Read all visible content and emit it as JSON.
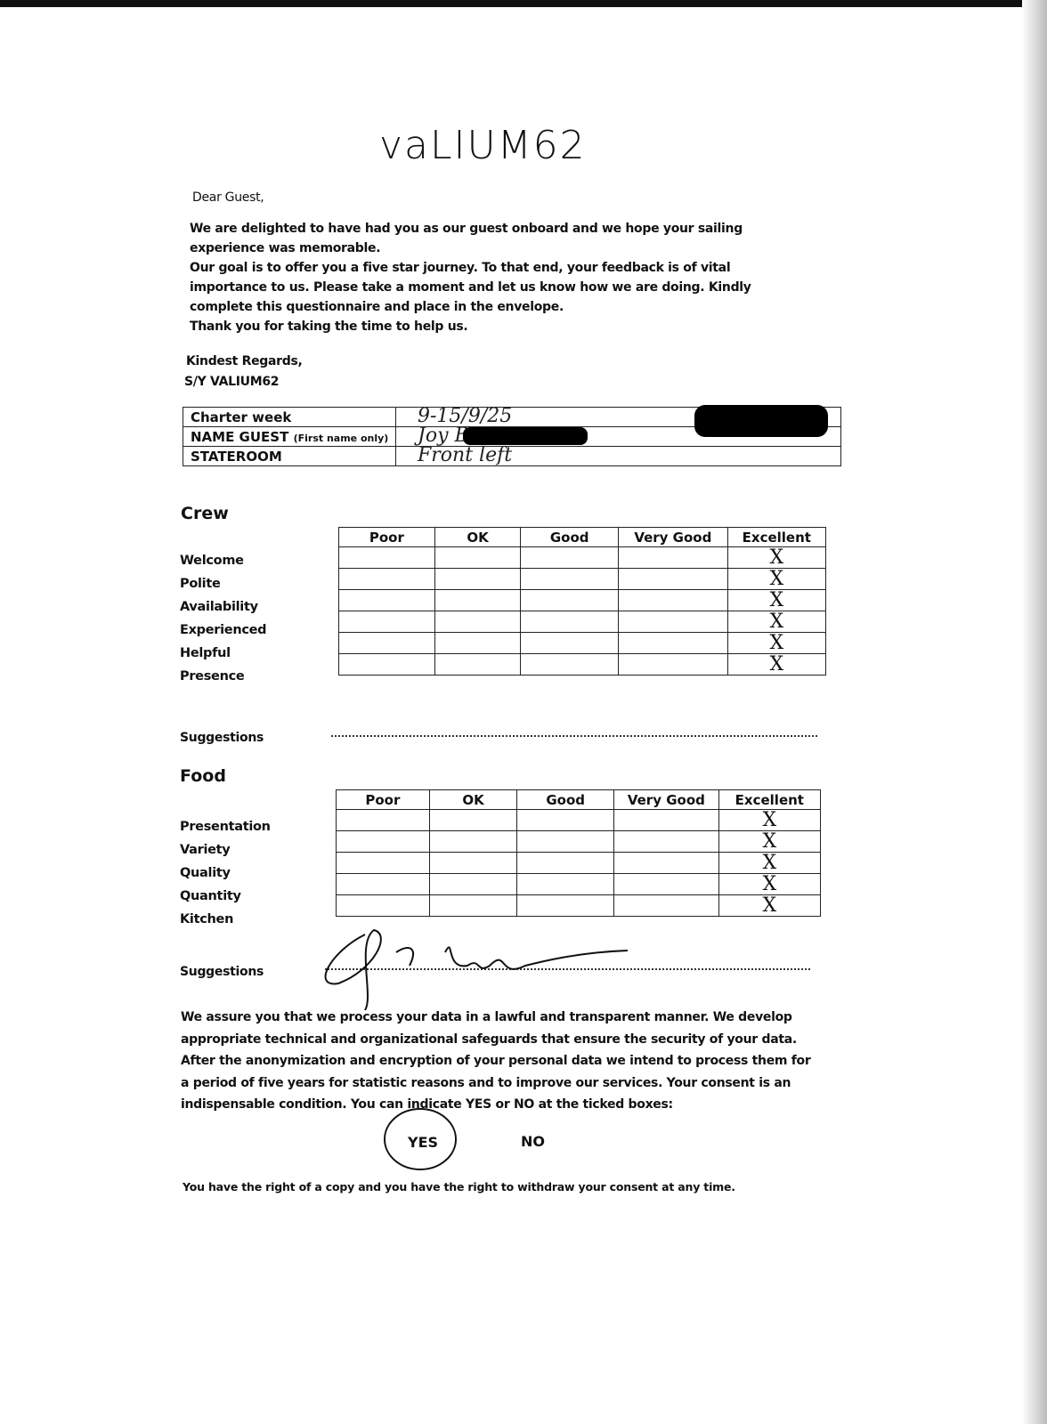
{
  "header": {
    "logo": "vaLIUM62"
  },
  "letter": {
    "greeting": "Dear Guest,",
    "paragraphs": [
      "We are delighted to have had you as our guest onboard and we hope your sailing experience was memorable.",
      "Our goal is to offer you a five star journey. To that end, your feedback is of vital importance to us. Please take a moment and let us know how we are doing. Kindly complete this questionnaire and place in the envelope.",
      "Thank you for taking the time to help us."
    ],
    "closing": "Kindest Regards,",
    "signature": "S/Y VALIUM62"
  },
  "guest_info": {
    "rows": [
      {
        "label": "Charter week",
        "value": "9-15/9/25"
      },
      {
        "label": "NAME GUEST",
        "label_note": "(First name only)",
        "value": "Joy Bach"
      },
      {
        "label": "STATEROOM",
        "value": "Front left"
      }
    ]
  },
  "columns": [
    "Poor",
    "OK",
    "Good",
    "Very Good",
    "Excellent"
  ],
  "crew": {
    "title": "Crew",
    "rows": [
      {
        "label": "Welcome",
        "excellent": "X"
      },
      {
        "label": "Polite",
        "excellent": "X"
      },
      {
        "label": "Availability",
        "excellent": "X"
      },
      {
        "label": "Experienced",
        "excellent": "X"
      },
      {
        "label": "Helpful",
        "excellent": "X"
      },
      {
        "label": "Presence",
        "excellent": "X"
      }
    ],
    "suggestions_label": "Suggestions"
  },
  "food": {
    "title": "Food",
    "rows": [
      {
        "label": "Presentation",
        "excellent": "X"
      },
      {
        "label": "Variety",
        "excellent": "X"
      },
      {
        "label": "Quality",
        "excellent": "X"
      },
      {
        "label": "Quantity",
        "excellent": "X"
      },
      {
        "label": "Kitchen",
        "excellent": "X"
      }
    ],
    "suggestions_label": "Suggestions"
  },
  "consent": {
    "text": "We assure you that we process your data in a lawful and transparent manner. We develop appropriate technical and organizational safeguards that ensure the security of your data. After the anonymization and encryption of your personal data we intend to process them for a period of five years for statistic reasons and to improve our services. Your consent is an indispensable condition. You can indicate YES or NO at the ticked boxes:",
    "yes": "YES",
    "no": "NO",
    "footer": "You have the right of a copy and you have the right to withdraw your consent at any time."
  }
}
